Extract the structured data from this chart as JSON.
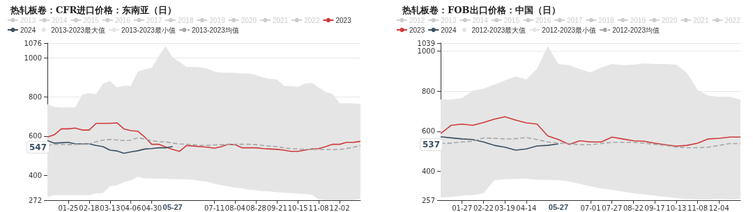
{
  "chart_data": [
    {
      "type": "line",
      "title": "热轧板卷：CFR进口价格：东南亚（日）",
      "legend": "top",
      "grid": "y",
      "categories": [
        null,
        null,
        null,
        "01-25",
        null,
        null,
        "02-18",
        null,
        null,
        "03-13",
        null,
        null,
        "04-06",
        null,
        null,
        "04-30",
        null,
        null,
        null,
        null,
        null,
        null,
        null,
        null,
        "07-11",
        null,
        null,
        "08-04",
        null,
        null,
        "08-28",
        null,
        null,
        "09-21",
        null,
        null,
        "10-15",
        null,
        null,
        "11-08",
        null,
        null,
        "12-02",
        null,
        null,
        null
      ],
      "ylim": [
        272,
        1076
      ],
      "yticks": [
        272,
        400,
        600,
        800,
        1000,
        1076
      ],
      "annotations": [
        {
          "text": "547",
          "y": 547
        },
        "05-27"
      ],
      "series": [
        {
          "name": "2013",
          "color": "#cccccc",
          "values": [
            null,
            null,
            null,
            null,
            null,
            null,
            null,
            null,
            null,
            null,
            null,
            null,
            null,
            null,
            null,
            null,
            null,
            null,
            null,
            null,
            null,
            null,
            null,
            null,
            null,
            null,
            null,
            null,
            null,
            null,
            null,
            null,
            null,
            null,
            null,
            null,
            null,
            null,
            null,
            null,
            null,
            null,
            null,
            null,
            null,
            null
          ]
        },
        {
          "name": "2014",
          "color": "#cccccc",
          "values": [
            null,
            null,
            null,
            null,
            null,
            null,
            null,
            null,
            null,
            null,
            null,
            null,
            null,
            null,
            null,
            null,
            null,
            null,
            null,
            null,
            null,
            null,
            null,
            null,
            null,
            null,
            null,
            null,
            null,
            null,
            null,
            null,
            null,
            null,
            null,
            null,
            null,
            null,
            null,
            null,
            null,
            null,
            null,
            null,
            null,
            null
          ]
        },
        {
          "name": "2015",
          "color": "#cccccc",
          "values": [
            null,
            null,
            null,
            null,
            null,
            null,
            null,
            null,
            null,
            null,
            null,
            null,
            null,
            null,
            null,
            null,
            null,
            null,
            null,
            null,
            null,
            null,
            null,
            null,
            null,
            null,
            null,
            null,
            null,
            null,
            null,
            null,
            null,
            null,
            null,
            null,
            null,
            null,
            null,
            null,
            null,
            null,
            null,
            null,
            null,
            null
          ]
        },
        {
          "name": "2016",
          "color": "#cccccc",
          "values": [
            null,
            null,
            null,
            null,
            null,
            null,
            null,
            null,
            null,
            null,
            null,
            null,
            null,
            null,
            null,
            null,
            null,
            null,
            null,
            null,
            null,
            null,
            null,
            null,
            null,
            null,
            null,
            null,
            null,
            null,
            null,
            null,
            null,
            null,
            null,
            null,
            null,
            null,
            null,
            null,
            null,
            null,
            null,
            null,
            null,
            null
          ]
        },
        {
          "name": "2017",
          "color": "#cccccc",
          "values": [
            null,
            null,
            null,
            null,
            null,
            null,
            null,
            null,
            null,
            null,
            null,
            null,
            null,
            null,
            null,
            null,
            null,
            null,
            null,
            null,
            null,
            null,
            null,
            null,
            null,
            null,
            null,
            null,
            null,
            null,
            null,
            null,
            null,
            null,
            null,
            null,
            null,
            null,
            null,
            null,
            null,
            null,
            null,
            null,
            null,
            null
          ]
        },
        {
          "name": "2018",
          "color": "#cccccc",
          "values": [
            null,
            null,
            null,
            null,
            null,
            null,
            null,
            null,
            null,
            null,
            null,
            null,
            null,
            null,
            null,
            null,
            null,
            null,
            null,
            null,
            null,
            null,
            null,
            null,
            null,
            null,
            null,
            null,
            null,
            null,
            null,
            null,
            null,
            null,
            null,
            null,
            null,
            null,
            null,
            null,
            null,
            null,
            null,
            null,
            null,
            null
          ]
        },
        {
          "name": "2019",
          "color": "#cccccc",
          "values": [
            null,
            null,
            null,
            null,
            null,
            null,
            null,
            null,
            null,
            null,
            null,
            null,
            null,
            null,
            null,
            null,
            null,
            null,
            null,
            null,
            null,
            null,
            null,
            null,
            null,
            null,
            null,
            null,
            null,
            null,
            null,
            null,
            null,
            null,
            null,
            null,
            null,
            null,
            null,
            null,
            null,
            null,
            null,
            null,
            null,
            null
          ]
        },
        {
          "name": "2020",
          "color": "#cccccc",
          "values": [
            null,
            null,
            null,
            null,
            null,
            null,
            null,
            null,
            null,
            null,
            null,
            null,
            null,
            null,
            null,
            null,
            null,
            null,
            null,
            null,
            null,
            null,
            null,
            null,
            null,
            null,
            null,
            null,
            null,
            null,
            null,
            null,
            null,
            null,
            null,
            null,
            null,
            null,
            null,
            null,
            null,
            null,
            null,
            null,
            null,
            null
          ]
        },
        {
          "name": "2021",
          "color": "#cccccc",
          "values": [
            null,
            null,
            null,
            null,
            null,
            null,
            null,
            null,
            null,
            null,
            null,
            null,
            null,
            null,
            null,
            null,
            null,
            null,
            null,
            null,
            null,
            null,
            null,
            null,
            null,
            null,
            null,
            null,
            null,
            null,
            null,
            null,
            null,
            null,
            null,
            null,
            null,
            null,
            null,
            null,
            null,
            null,
            null,
            null,
            null,
            null
          ]
        },
        {
          "name": "2022",
          "color": "#cccccc",
          "values": [
            null,
            null,
            null,
            null,
            null,
            null,
            null,
            null,
            null,
            null,
            null,
            null,
            null,
            null,
            null,
            null,
            null,
            null,
            null,
            null,
            null,
            null,
            null,
            null,
            null,
            null,
            null,
            null,
            null,
            null,
            null,
            null,
            null,
            null,
            null,
            null,
            null,
            null,
            null,
            null,
            null,
            null,
            null,
            null,
            null,
            null
          ]
        },
        {
          "name": "2023",
          "color": "#d0393b",
          "values": [
            595,
            607,
            637,
            637,
            641,
            631,
            631,
            665,
            665,
            665,
            668,
            637,
            628,
            625,
            595,
            558,
            558,
            544,
            532,
            522,
            552,
            549,
            546,
            543,
            538,
            546,
            558,
            556,
            540,
            540,
            540,
            536,
            534,
            532,
            528,
            522,
            522,
            528,
            534,
            536,
            546,
            558,
            558,
            568,
            568,
            573
          ]
        },
        {
          "name": "2024",
          "color": "#3b5063",
          "values": [
            577,
            564,
            566,
            568,
            560,
            560,
            560,
            552,
            546,
            528,
            524,
            512,
            519,
            525,
            534,
            536,
            540,
            540,
            547,
            null,
            null,
            null,
            null,
            null,
            null,
            null,
            null,
            null,
            null,
            null,
            null,
            null,
            null,
            null,
            null,
            null,
            null,
            null,
            null,
            null,
            null,
            null,
            null,
            null,
            null,
            null
          ]
        },
        {
          "name": "2013-2023最大值",
          "type": "area",
          "color": "#e5e5e5",
          "values": [
            763,
            750,
            747,
            747,
            747,
            812,
            820,
            815,
            869,
            881,
            850,
            857,
            857,
            930,
            942,
            950,
            1009,
            1060,
            1003,
            979,
            954,
            954,
            952,
            945,
            930,
            925,
            925,
            923,
            920,
            920,
            912,
            900,
            893,
            890,
            857,
            855,
            852,
            868,
            872,
            848,
            826,
            815,
            768,
            768,
            767,
            765
          ]
        },
        {
          "name": "2013-2023最小值",
          "type": "area",
          "color": "#e5e5e5",
          "values": [
            290,
            300,
            300,
            300,
            300,
            300,
            300,
            309,
            310,
            345,
            350,
            366,
            375,
            394,
            385,
            385,
            384,
            383,
            382,
            381,
            380,
            378,
            372,
            368,
            358,
            350,
            345,
            337,
            335,
            327,
            325,
            320,
            318,
            315,
            312,
            310,
            308,
            305,
            302,
            278,
            275,
            275,
            275,
            275,
            275,
            280
          ]
        },
        {
          "name": "2013-2023均值",
          "color": "#a6a6a6",
          "line_style": "dashed",
          "values": [
            552,
            558,
            558,
            556,
            558,
            558,
            560,
            571,
            580,
            583,
            580,
            577,
            579,
            592,
            585,
            577,
            571,
            571,
            564,
            560,
            558,
            556,
            552,
            552,
            555,
            556,
            556,
            558,
            558,
            558,
            556,
            552,
            549,
            546,
            540,
            536,
            534,
            532,
            532,
            532,
            531,
            531,
            532,
            536,
            543,
            552
          ]
        }
      ]
    },
    {
      "type": "line",
      "title": "热轧板卷：FOB出口价格：中国（日）",
      "legend": "top",
      "grid": "y",
      "categories": [
        null,
        null,
        "01-27",
        null,
        "02-22",
        null,
        "03-19",
        null,
        "04-14",
        null,
        null,
        null,
        null,
        null,
        "07-01",
        null,
        "07-27",
        null,
        "08-22",
        null,
        "09-17",
        null,
        "10-13",
        null,
        "11-08",
        null,
        "12-04",
        null,
        null
      ],
      "ylim": [
        257,
        1039
      ],
      "yticks": [
        257,
        400,
        600,
        800,
        1000,
        1039
      ],
      "annotations": [
        {
          "text": "537",
          "y": 537
        },
        "05-27"
      ],
      "series": [
        {
          "name": "2012",
          "color": "#cccccc",
          "values": [
            null,
            null,
            null,
            null,
            null,
            null,
            null,
            null,
            null,
            null,
            null,
            null,
            null,
            null,
            null,
            null,
            null,
            null,
            null,
            null,
            null,
            null,
            null,
            null,
            null,
            null,
            null,
            null,
            null
          ]
        },
        {
          "name": "2013",
          "color": "#cccccc",
          "values": [
            null,
            null,
            null,
            null,
            null,
            null,
            null,
            null,
            null,
            null,
            null,
            null,
            null,
            null,
            null,
            null,
            null,
            null,
            null,
            null,
            null,
            null,
            null,
            null,
            null,
            null,
            null,
            null,
            null
          ]
        },
        {
          "name": "2014",
          "color": "#cccccc",
          "values": [
            null,
            null,
            null,
            null,
            null,
            null,
            null,
            null,
            null,
            null,
            null,
            null,
            null,
            null,
            null,
            null,
            null,
            null,
            null,
            null,
            null,
            null,
            null,
            null,
            null,
            null,
            null,
            null,
            null
          ]
        },
        {
          "name": "2015",
          "color": "#cccccc",
          "values": [
            null,
            null,
            null,
            null,
            null,
            null,
            null,
            null,
            null,
            null,
            null,
            null,
            null,
            null,
            null,
            null,
            null,
            null,
            null,
            null,
            null,
            null,
            null,
            null,
            null,
            null,
            null,
            null,
            null
          ]
        },
        {
          "name": "2016",
          "color": "#cccccc",
          "values": [
            null,
            null,
            null,
            null,
            null,
            null,
            null,
            null,
            null,
            null,
            null,
            null,
            null,
            null,
            null,
            null,
            null,
            null,
            null,
            null,
            null,
            null,
            null,
            null,
            null,
            null,
            null,
            null,
            null
          ]
        },
        {
          "name": "2017",
          "color": "#cccccc",
          "values": [
            null,
            null,
            null,
            null,
            null,
            null,
            null,
            null,
            null,
            null,
            null,
            null,
            null,
            null,
            null,
            null,
            null,
            null,
            null,
            null,
            null,
            null,
            null,
            null,
            null,
            null,
            null,
            null,
            null
          ]
        },
        {
          "name": "2018",
          "color": "#cccccc",
          "values": [
            null,
            null,
            null,
            null,
            null,
            null,
            null,
            null,
            null,
            null,
            null,
            null,
            null,
            null,
            null,
            null,
            null,
            null,
            null,
            null,
            null,
            null,
            null,
            null,
            null,
            null,
            null,
            null,
            null
          ]
        },
        {
          "name": "2019",
          "color": "#cccccc",
          "values": [
            null,
            null,
            null,
            null,
            null,
            null,
            null,
            null,
            null,
            null,
            null,
            null,
            null,
            null,
            null,
            null,
            null,
            null,
            null,
            null,
            null,
            null,
            null,
            null,
            null,
            null,
            null,
            null,
            null
          ]
        },
        {
          "name": "2020",
          "color": "#cccccc",
          "values": [
            null,
            null,
            null,
            null,
            null,
            null,
            null,
            null,
            null,
            null,
            null,
            null,
            null,
            null,
            null,
            null,
            null,
            null,
            null,
            null,
            null,
            null,
            null,
            null,
            null,
            null,
            null,
            null,
            null
          ]
        },
        {
          "name": "2021",
          "color": "#cccccc",
          "values": [
            null,
            null,
            null,
            null,
            null,
            null,
            null,
            null,
            null,
            null,
            null,
            null,
            null,
            null,
            null,
            null,
            null,
            null,
            null,
            null,
            null,
            null,
            null,
            null,
            null,
            null,
            null,
            null,
            null
          ]
        },
        {
          "name": "2022",
          "color": "#cccccc",
          "values": [
            null,
            null,
            null,
            null,
            null,
            null,
            null,
            null,
            null,
            null,
            null,
            null,
            null,
            null,
            null,
            null,
            null,
            null,
            null,
            null,
            null,
            null,
            null,
            null,
            null,
            null,
            null,
            null,
            null
          ]
        },
        {
          "name": "2023",
          "color": "#d0393b",
          "values": [
            589,
            630,
            636,
            630,
            644,
            660,
            672,
            656,
            642,
            636,
            577,
            559,
            535,
            553,
            547,
            547,
            571,
            562,
            553,
            550,
            541,
            533,
            526,
            530,
            541,
            562,
            565,
            571,
            571
          ]
        },
        {
          "name": "2024",
          "color": "#3b5063",
          "values": [
            573,
            567,
            562,
            559,
            547,
            530,
            521,
            506,
            512,
            527,
            530,
            537,
            null,
            null,
            null,
            null,
            null,
            null,
            null,
            null,
            null,
            null,
            null,
            null,
            null,
            null,
            null,
            null,
            null
          ]
        },
        {
          "name": "2012-2023最大值",
          "type": "area",
          "color": "#e5e5e5",
          "values": [
            758,
            758,
            766,
            802,
            812,
            832,
            853,
            873,
            858,
            911,
            1024,
            935,
            929,
            909,
            893,
            917,
            935,
            929,
            932,
            938,
            935,
            935,
            932,
            891,
            806,
            778,
            772,
            772,
            758
          ]
        },
        {
          "name": "2012-2023最小值",
          "type": "area",
          "color": "#e5e5e5",
          "values": [
            272,
            275,
            281,
            284,
            293,
            358,
            364,
            364,
            366,
            360,
            360,
            358,
            352,
            340,
            328,
            316,
            310,
            302,
            293,
            287,
            281,
            275,
            269,
            265,
            263,
            263,
            265,
            263,
            265
          ]
        },
        {
          "name": "2012-2023均值",
          "color": "#a6a6a6",
          "line_style": "dashed",
          "values": [
            539,
            541,
            547,
            550,
            567,
            565,
            562,
            563,
            569,
            559,
            547,
            541,
            539,
            533,
            533,
            539,
            545,
            545,
            545,
            541,
            535,
            530,
            521,
            518,
            518,
            521,
            530,
            539,
            539
          ]
        }
      ]
    }
  ]
}
